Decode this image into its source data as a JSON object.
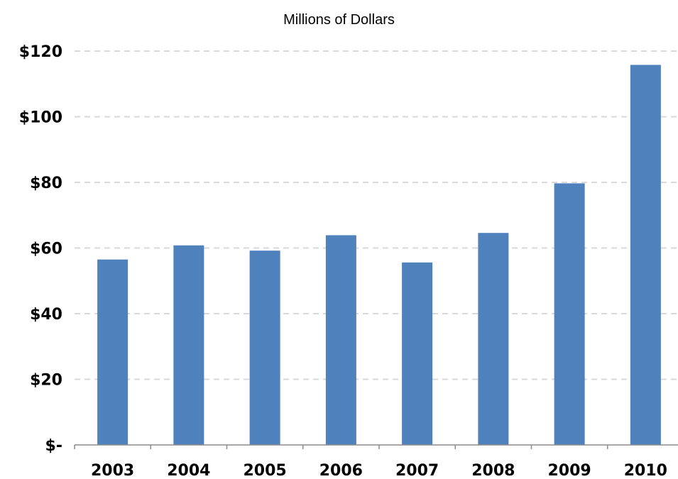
{
  "chart_data": {
    "type": "bar",
    "title": "Millions of Dollars",
    "xlabel": "",
    "ylabel": "",
    "categories": [
      "2003",
      "2004",
      "2005",
      "2006",
      "2007",
      "2008",
      "2009",
      "2010"
    ],
    "series": [
      {
        "values": [
          56.5,
          60.8,
          59.2,
          63.9,
          55.6,
          64.6,
          79.7,
          115.8
        ]
      }
    ],
    "ylim": [
      0,
      120
    ],
    "yticks": [
      0,
      20,
      40,
      60,
      80,
      100,
      120
    ],
    "ytick_labels": [
      "$-",
      "$20",
      "$40",
      "$60",
      "$80",
      "$100",
      "$120"
    ],
    "grid": true,
    "grid_style": "dashed",
    "bar_color": "#4f81bd",
    "grid_color": "#d9d9d9",
    "axis_color": "#8c8c8c"
  }
}
